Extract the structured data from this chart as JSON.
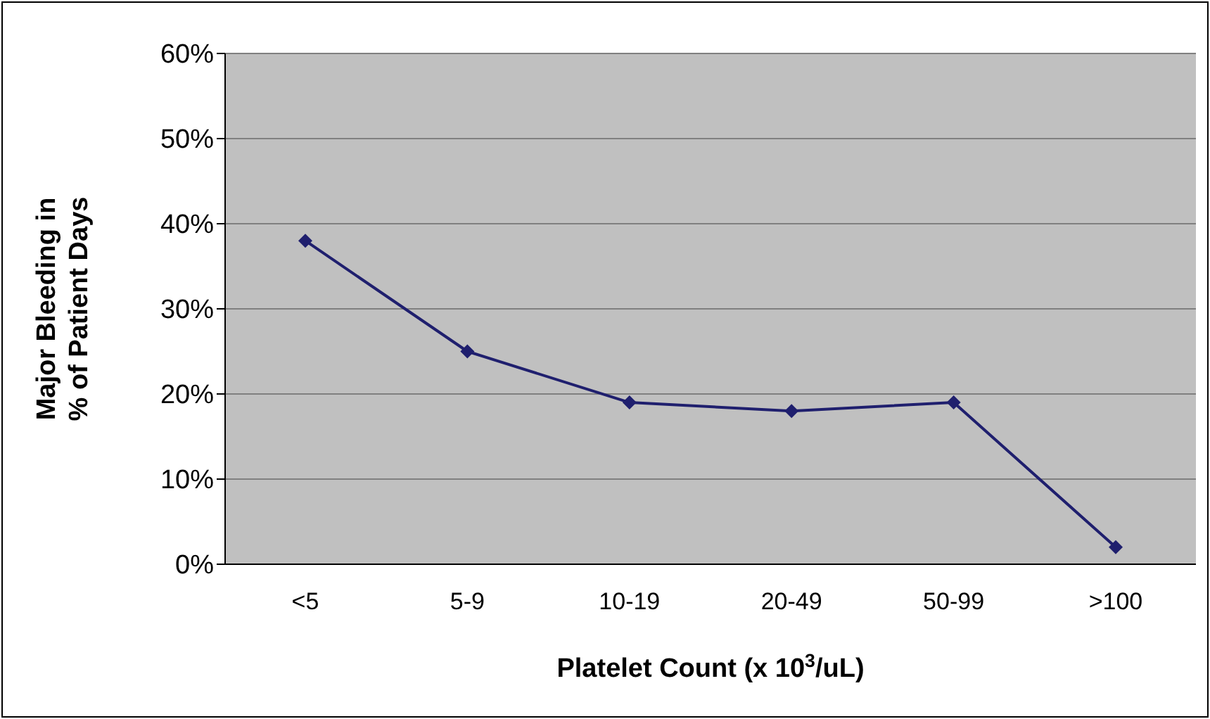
{
  "chart_data": {
    "type": "line",
    "xlabel": "Platelet Count (x 10$^{3}$/uL)",
    "ylabel": "Major Bleeding in\n% of Patient Days",
    "categories": [
      "<5",
      "5-9",
      "10-19",
      "20-49",
      "50-99",
      ">100"
    ],
    "series": [
      {
        "color": "#1f1f6e",
        "values": [
          38,
          25,
          19,
          18,
          19,
          2
        ]
      }
    ],
    "ylim": [
      0,
      60
    ],
    "yticks": [
      {
        "value": 0,
        "label": "0%"
      },
      {
        "value": 10,
        "label": "10%"
      },
      {
        "value": 20,
        "label": "20%"
      },
      {
        "value": 30,
        "label": "30%"
      },
      {
        "value": 40,
        "label": "40%"
      },
      {
        "value": 50,
        "label": "50%"
      },
      {
        "value": 60,
        "label": "60%"
      }
    ],
    "grid": "y",
    "legend": false,
    "marker": "diamond",
    "line_style": "solid"
  }
}
